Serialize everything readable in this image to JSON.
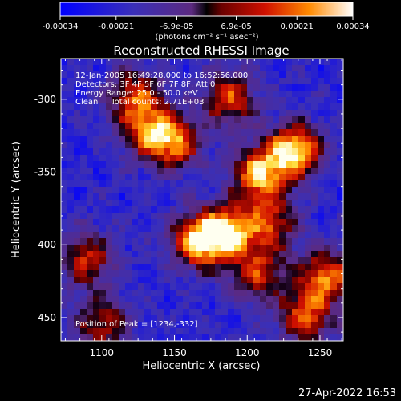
{
  "chart_data": {
    "type": "heatmap",
    "title": "Reconstructed RHESSI Image",
    "xlabel": "Heliocentric X (arcsec)",
    "ylabel": "Heliocentric Y (arcsec)",
    "xlim": [
      1072,
      1266
    ],
    "ylim": [
      -466,
      -272
    ],
    "x_ticks": [
      "1100",
      "1150",
      "1200",
      "1250"
    ],
    "x_tick_values": [
      1100,
      1150,
      1200,
      1250
    ],
    "y_ticks": [
      "-300",
      "-350",
      "-400",
      "-450"
    ],
    "y_tick_values": [
      -300,
      -350,
      -400,
      -450
    ],
    "colorbar": {
      "range": [
        -0.00034,
        0.00034
      ],
      "tick_labels": [
        "-0.00034",
        "-0.00021",
        "-6.9e-05",
        "6.9e-05",
        "0.00021",
        "0.00034"
      ],
      "tick_values": [
        -0.00034,
        -0.00021,
        -6.9e-05,
        6.9e-05,
        0.00021,
        0.00034
      ],
      "units_label": "(photons cm⁻² s⁻¹ asec⁻²)"
    },
    "annotations": [
      "12-Jan-2005 16:49:28.000 to 16:52:56.000",
      "Detectors: 3F 4F 5F 6F 7F 8F, Att 0",
      "Energy Range: 25.0 - 50.0 keV",
      "Clean     Total counts: 2.71E+03"
    ],
    "peak_label": "Position of Peak = [1234,-332]",
    "peak": {
      "x": 1234,
      "y": -332
    },
    "sources": [
      {
        "x": 1232,
        "y": -335,
        "value": 0.00034
      },
      {
        "x": 1208,
        "y": -352,
        "value": 0.00026
      },
      {
        "x": 1185,
        "y": -392,
        "value": 0.00031
      },
      {
        "x": 1165,
        "y": -398,
        "value": 0.00024
      },
      {
        "x": 1150,
        "y": -330,
        "value": 0.00018
      },
      {
        "x": 1123,
        "y": -298,
        "value": 0.00014
      },
      {
        "x": 1132,
        "y": -322,
        "value": 0.00012
      },
      {
        "x": 1188,
        "y": -300,
        "value": 0.00015
      },
      {
        "x": 1254,
        "y": -422,
        "value": 0.00022
      },
      {
        "x": 1240,
        "y": -450,
        "value": 0.00016
      },
      {
        "x": 1208,
        "y": -420,
        "value": 0.00012
      },
      {
        "x": 1090,
        "y": -410,
        "value": 0.00012
      },
      {
        "x": 1100,
        "y": -455,
        "value": 0.0001
      },
      {
        "x": 1215,
        "y": -385,
        "value": 0.00014
      }
    ],
    "colors": {
      "background": "#000000",
      "text": "#ffffff"
    }
  },
  "footer": {
    "timestamp": "27-Apr-2022 16:53"
  }
}
